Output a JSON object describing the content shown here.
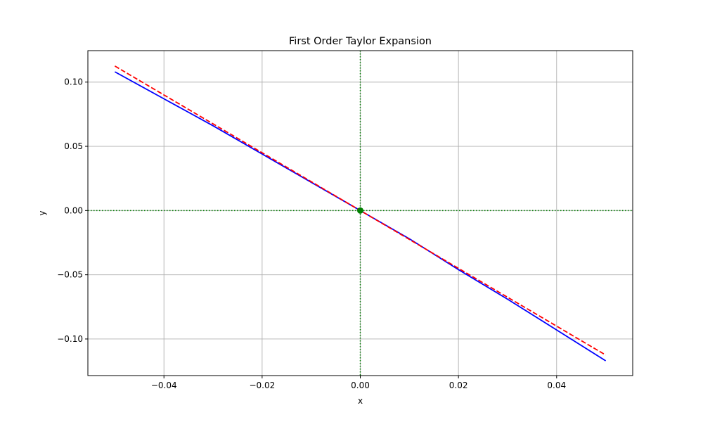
{
  "chart_data": {
    "type": "line",
    "title": "First Order Taylor Expansion",
    "xlabel": "x",
    "ylabel": "y",
    "xlim": [
      -0.0555,
      0.0555
    ],
    "ylim": [
      -0.1285,
      0.1245
    ],
    "xticks": [
      -0.04,
      -0.02,
      0.0,
      0.02,
      0.04
    ],
    "xtick_labels": [
      "−0.04",
      "−0.02",
      "0.00",
      "0.02",
      "0.04"
    ],
    "yticks": [
      -0.1,
      -0.05,
      0.0,
      0.05,
      0.1
    ],
    "ytick_labels": [
      "−0.10",
      "−0.05",
      "0.00",
      "0.05",
      "0.10"
    ],
    "grid": true,
    "series": [
      {
        "color": "#0000ff",
        "style": "solid",
        "x": [
          -0.05,
          -0.04,
          -0.03,
          -0.02,
          -0.01,
          0.0,
          0.01,
          0.02,
          0.03,
          0.04,
          0.05
        ],
        "y": [
          0.108,
          0.087,
          0.066,
          0.044,
          0.022,
          0.0,
          -0.022,
          -0.046,
          -0.069,
          -0.093,
          -0.117
        ]
      },
      {
        "color": "#ff0000",
        "style": "dashed",
        "x": [
          -0.05,
          0.05
        ],
        "y": [
          0.1125,
          -0.1125
        ]
      }
    ],
    "reference_lines": [
      {
        "orientation": "vertical",
        "value": 0.0,
        "color": "#008000",
        "style": "dotted"
      },
      {
        "orientation": "horizontal",
        "value": 0.0,
        "color": "#008000",
        "style": "dotted"
      }
    ],
    "markers": [
      {
        "x": 0.0,
        "y": 0.0,
        "color": "#008000"
      }
    ]
  }
}
